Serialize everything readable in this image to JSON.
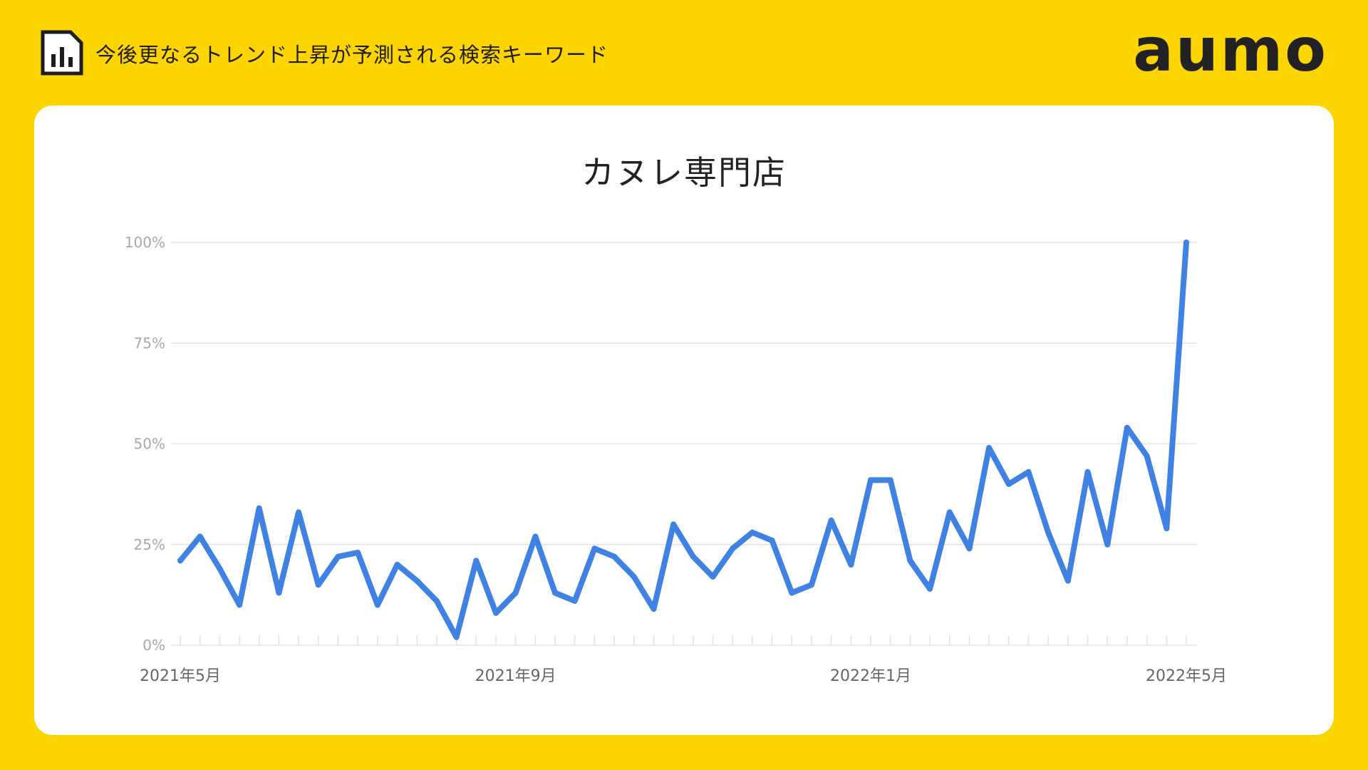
{
  "header": {
    "title": "今後更なるトレンド上昇が予測される検索キーワード",
    "brand": "aumo"
  },
  "colors": {
    "background": "#FCD400",
    "line": "#3F82E3",
    "grid": "#E3E3E3",
    "tick_label": "#A8A8A8"
  },
  "chart_data": {
    "type": "line",
    "title": "カヌレ専門店",
    "ylim": [
      0,
      100
    ],
    "y_ticks": [
      {
        "value": 0,
        "label": "0%"
      },
      {
        "value": 25,
        "label": "25%"
      },
      {
        "value": 50,
        "label": "50%"
      },
      {
        "value": 75,
        "label": "75%"
      },
      {
        "value": 100,
        "label": "100%"
      }
    ],
    "x_ticks": [
      {
        "index": 0,
        "label": "2021年5月"
      },
      {
        "index": 17,
        "label": "2021年9月"
      },
      {
        "index": 35,
        "label": "2022年1月"
      },
      {
        "index": 51,
        "label": "2022年5月"
      }
    ],
    "grid": true,
    "legend": false,
    "series": [
      {
        "values": [
          21,
          27,
          19,
          10,
          34,
          13,
          33,
          15,
          22,
          23,
          10,
          20,
          16,
          11,
          2,
          21,
          8,
          13,
          27,
          13,
          11,
          24,
          22,
          17,
          9,
          30,
          22,
          17,
          24,
          28,
          26,
          13,
          15,
          31,
          20,
          41,
          41,
          21,
          14,
          33,
          24,
          49,
          40,
          43,
          28,
          16,
          43,
          25,
          54,
          47,
          29,
          100
        ]
      }
    ]
  }
}
